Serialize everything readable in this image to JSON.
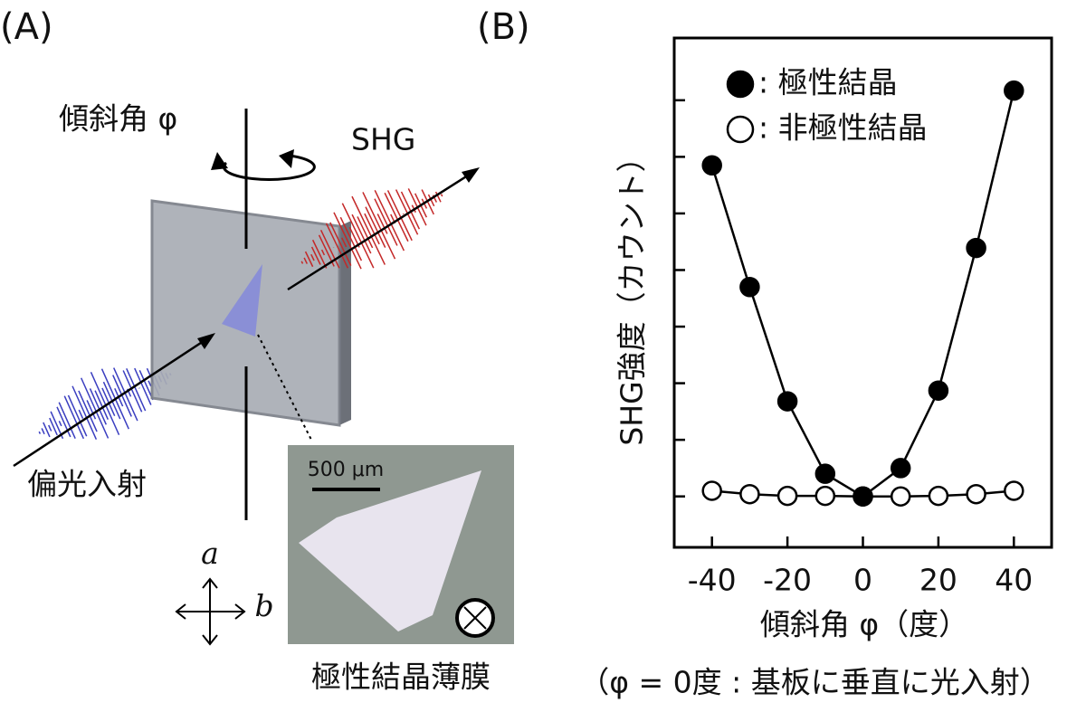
{
  "panel_a": {
    "label": "(A)",
    "tilt_label": "傾斜角 φ",
    "shg_label": "SHG",
    "input_label": "偏光入射",
    "scale_label": "500 μm",
    "film_label": "極性結晶薄膜",
    "axis_a": "a",
    "axis_b": "b"
  },
  "chart_data": {
    "type": "line",
    "panel_label": "(B)",
    "x_label": "傾斜角 φ（度）",
    "y_label": "SHG強度（カウント）",
    "note": "（φ = 0度 : 基板に垂直に光入射）",
    "x": [
      -40,
      -30,
      -20,
      -10,
      0,
      10,
      20,
      30,
      40
    ],
    "series": [
      {
        "name": ": 極性結晶",
        "marker": "filled",
        "color": "#000000",
        "values": [
          5.85,
          3.7,
          1.68,
          0.4,
          0,
          0.5,
          1.87,
          4.39,
          7.17
        ]
      },
      {
        "name": ": 非極性結晶",
        "marker": "open",
        "color": "#000000",
        "values": [
          0.1,
          0.04,
          0.01,
          0.01,
          0,
          0,
          0.01,
          0.04,
          0.1
        ]
      }
    ],
    "xlim": [
      -50,
      50
    ],
    "xticks": [
      -40,
      -20,
      0,
      20,
      40
    ],
    "ylim": [
      -0.9,
      8.1
    ],
    "yticks": [
      0,
      1,
      2,
      3,
      4,
      5,
      6,
      7
    ]
  }
}
